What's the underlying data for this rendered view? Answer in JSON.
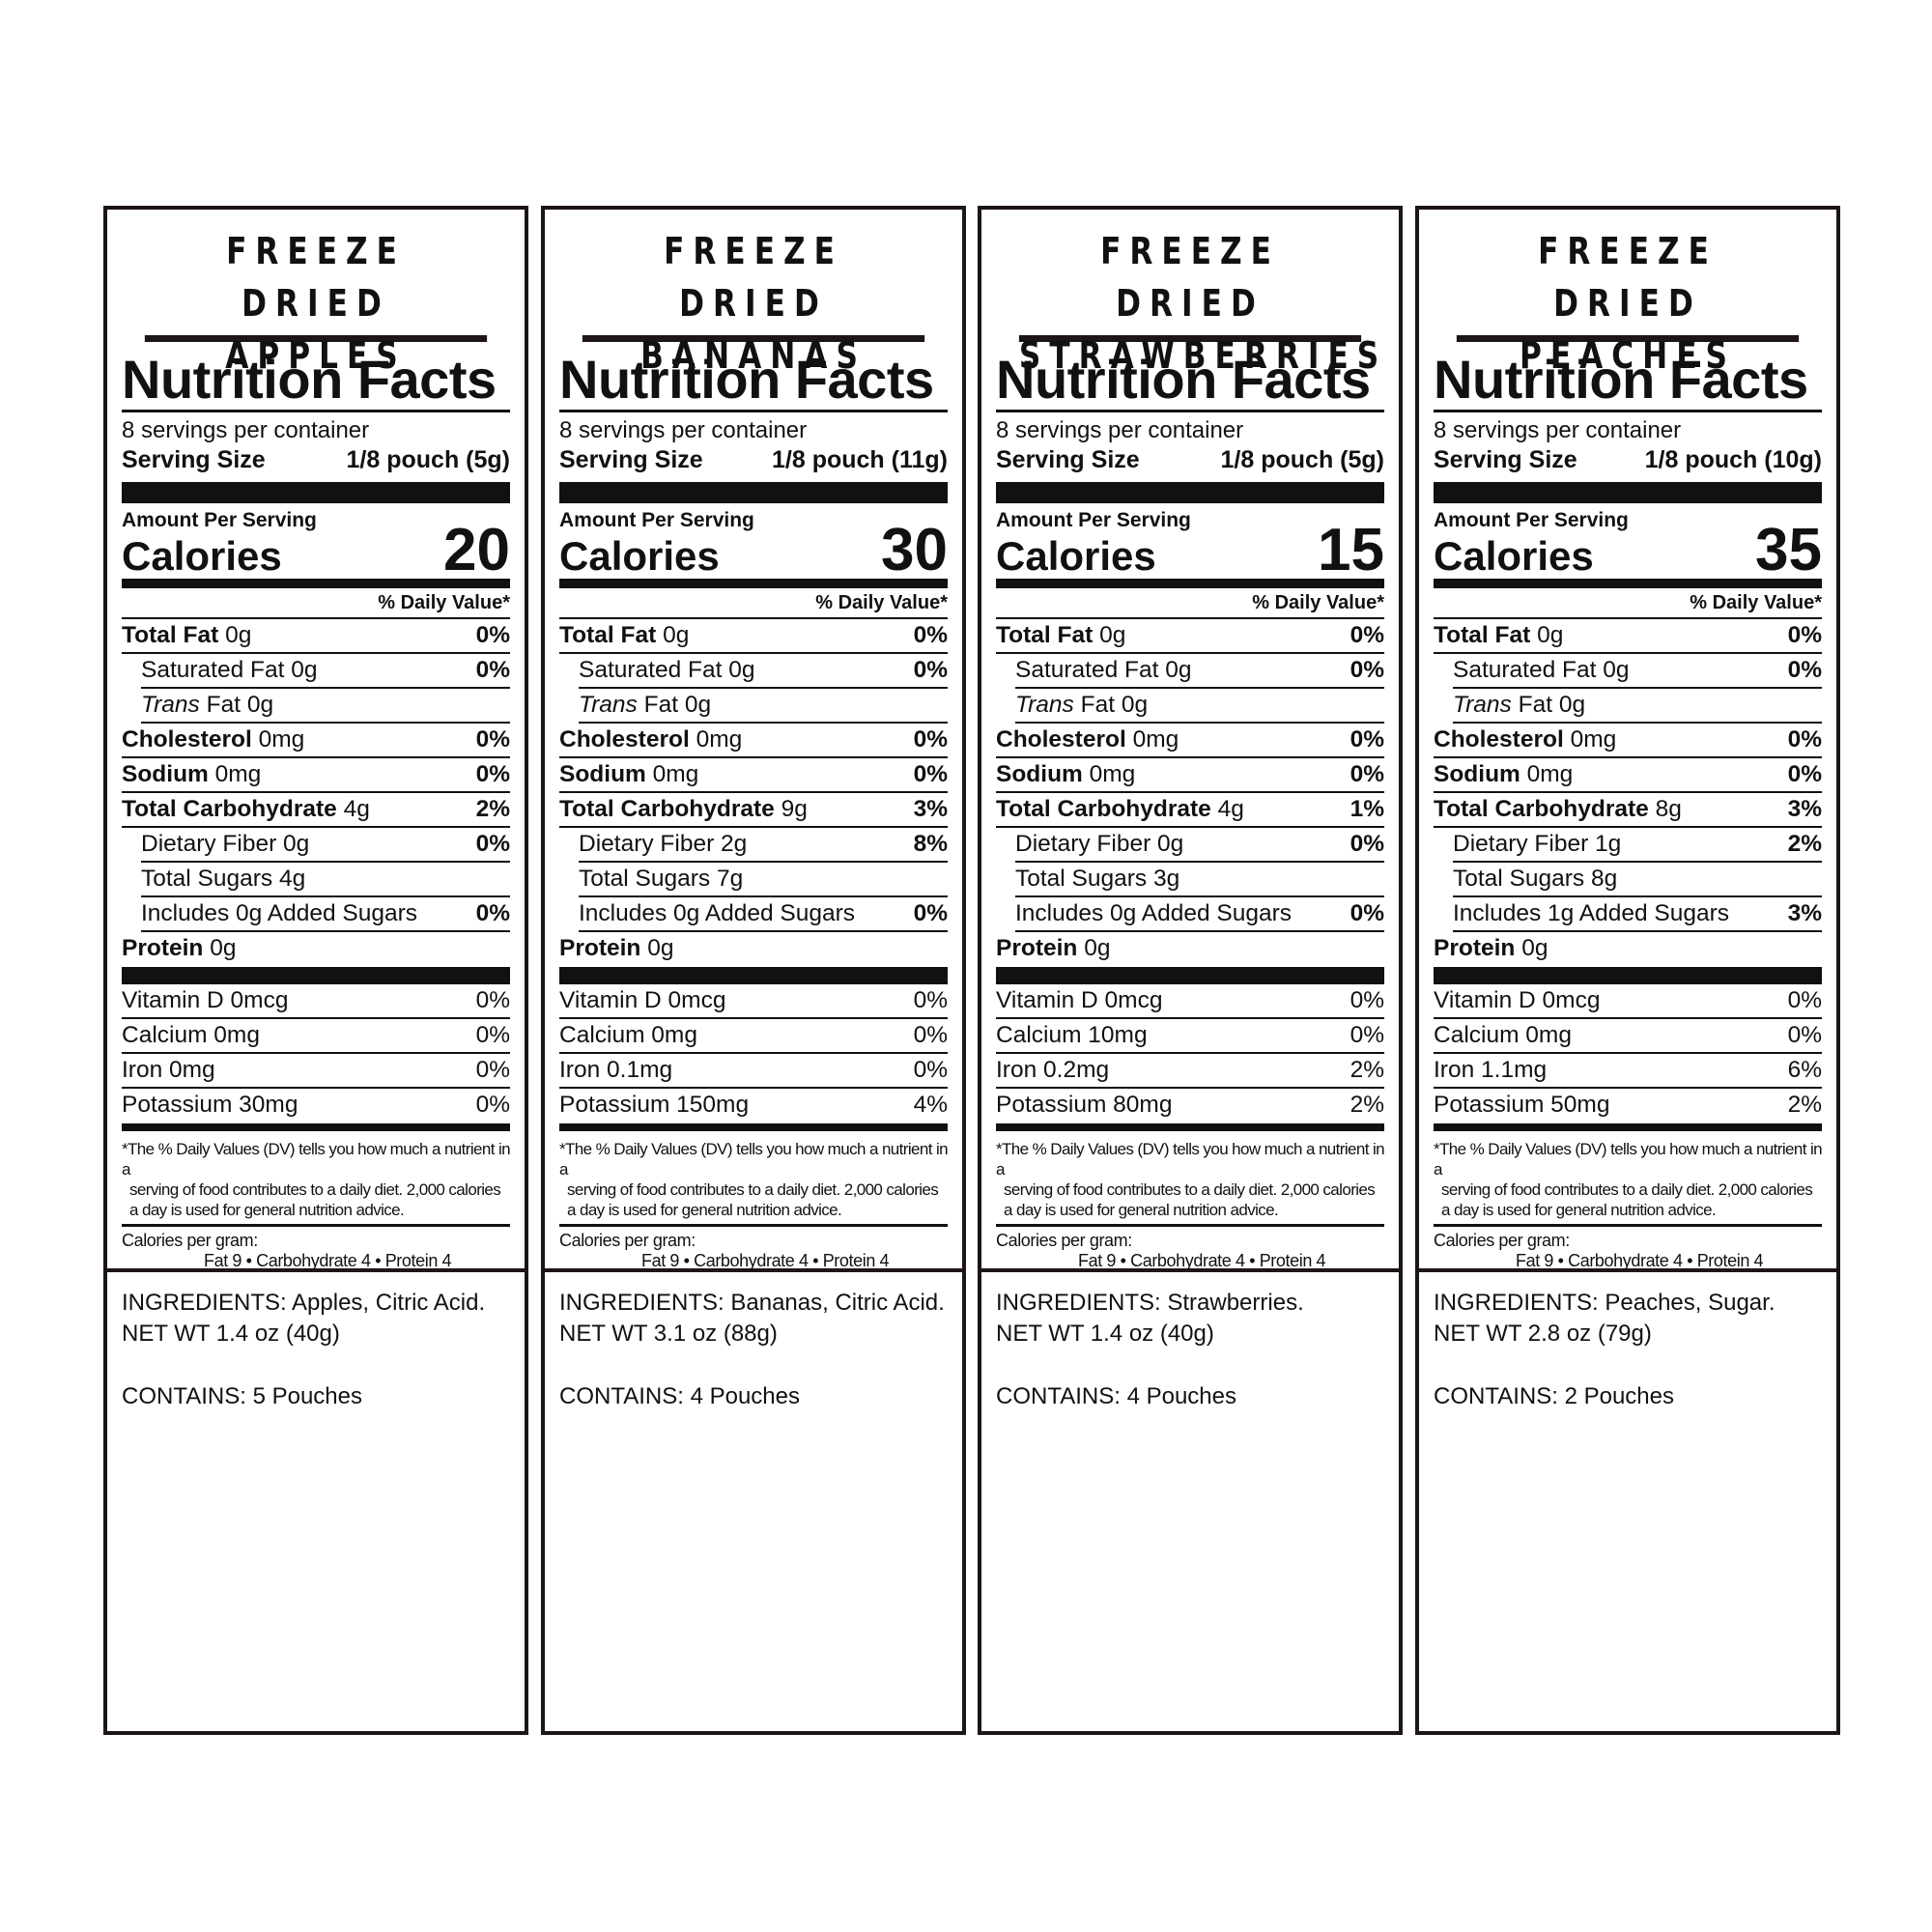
{
  "common": {
    "title_prefix": "FREEZE DRIED",
    "nf_heading": "Nutrition Facts",
    "servings": "8 servings per container",
    "serving_size_label": "Serving Size",
    "amount_per_serving": "Amount Per Serving",
    "calories_label": "Calories",
    "dv_header": "% Daily Value*",
    "footnote": [
      "*The % Daily Values (DV) tells you how much a nutrient in a",
      "serving of food contributes to a daily diet. 2,000 calories",
      "a day is used for general nutrition advice."
    ],
    "cal_per_gram": "Calories per gram:",
    "cal_per_gram_values": "Fat 9  •  Carbohydrate 4  •  Protein 4",
    "ingredients_label": "INGREDIENTS:",
    "contains_label": "CONTAINS:"
  },
  "products": [
    {
      "name": "APPLES",
      "serving_size": "1/8 pouch (5g)",
      "calories": "20",
      "rows": [
        {
          "bold": "Total Fat",
          "text": " 0g",
          "dv": "0%"
        },
        {
          "text": "Saturated Fat 0g",
          "dv": "0%",
          "indent": true
        },
        {
          "italic": "Trans",
          "text": " Fat 0g",
          "dv": "",
          "indent": true
        },
        {
          "bold": "Cholesterol",
          "text": " 0mg",
          "dv": "0%"
        },
        {
          "bold": "Sodium",
          "text": " 0mg",
          "dv": "0%"
        },
        {
          "bold": "Total Carbohydrate",
          "text": " 4g",
          "dv": "2%"
        },
        {
          "text": "Dietary Fiber 0g",
          "dv": "0%",
          "indent": true
        },
        {
          "text": "Total Sugars 4g",
          "dv": "",
          "indent": true
        },
        {
          "text": "Includes 0g Added Sugars",
          "dv": "0%",
          "indent": true
        },
        {
          "bold": "Protein",
          "text": " 0g",
          "dv": ""
        }
      ],
      "vitamins": [
        {
          "text": "Vitamin D 0mcg",
          "dv": "0%"
        },
        {
          "text": "Calcium 0mg",
          "dv": "0%"
        },
        {
          "text": "Iron 0mg",
          "dv": "0%"
        },
        {
          "text": "Potassium 30mg",
          "dv": "0%"
        }
      ],
      "ingredients": "Apples, Citric Acid.",
      "net_wt": "NET WT 1.4 oz (40g)",
      "contains": "5 Pouches"
    },
    {
      "name": "BANANAS",
      "serving_size": "1/8 pouch (11g)",
      "calories": "30",
      "rows": [
        {
          "bold": "Total Fat",
          "text": " 0g",
          "dv": "0%"
        },
        {
          "text": "Saturated Fat 0g",
          "dv": "0%",
          "indent": true
        },
        {
          "italic": "Trans",
          "text": " Fat 0g",
          "dv": "",
          "indent": true
        },
        {
          "bold": "Cholesterol",
          "text": " 0mg",
          "dv": "0%"
        },
        {
          "bold": "Sodium",
          "text": " 0mg",
          "dv": "0%"
        },
        {
          "bold": "Total Carbohydrate",
          "text": " 9g",
          "dv": "3%"
        },
        {
          "text": "Dietary Fiber 2g",
          "dv": "8%",
          "indent": true
        },
        {
          "text": "Total Sugars 7g",
          "dv": "",
          "indent": true
        },
        {
          "text": "Includes 0g Added Sugars",
          "dv": "0%",
          "indent": true
        },
        {
          "bold": "Protein",
          "text": " 0g",
          "dv": ""
        }
      ],
      "vitamins": [
        {
          "text": "Vitamin D 0mcg",
          "dv": "0%"
        },
        {
          "text": "Calcium 0mg",
          "dv": "0%"
        },
        {
          "text": "Iron 0.1mg",
          "dv": "0%"
        },
        {
          "text": "Potassium 150mg",
          "dv": "4%"
        }
      ],
      "ingredients": "Bananas, Citric Acid.",
      "net_wt": "NET WT 3.1 oz (88g)",
      "contains": "4 Pouches"
    },
    {
      "name": "STRAWBERRIES",
      "serving_size": "1/8 pouch (5g)",
      "calories": "15",
      "rows": [
        {
          "bold": "Total Fat",
          "text": " 0g",
          "dv": "0%"
        },
        {
          "text": "Saturated Fat 0g",
          "dv": "0%",
          "indent": true
        },
        {
          "italic": "Trans",
          "text": " Fat 0g",
          "dv": "",
          "indent": true
        },
        {
          "bold": "Cholesterol",
          "text": " 0mg",
          "dv": "0%"
        },
        {
          "bold": "Sodium",
          "text": " 0mg",
          "dv": "0%"
        },
        {
          "bold": "Total Carbohydrate",
          "text": " 4g",
          "dv": "1%"
        },
        {
          "text": "Dietary Fiber 0g",
          "dv": "0%",
          "indent": true
        },
        {
          "text": "Total Sugars 3g",
          "dv": "",
          "indent": true
        },
        {
          "text": "Includes 0g Added Sugars",
          "dv": "0%",
          "indent": true
        },
        {
          "bold": "Protein",
          "text": " 0g",
          "dv": ""
        }
      ],
      "vitamins": [
        {
          "text": "Vitamin D 0mcg",
          "dv": "0%"
        },
        {
          "text": "Calcium 10mg",
          "dv": "0%"
        },
        {
          "text": "Iron 0.2mg",
          "dv": "2%"
        },
        {
          "text": "Potassium 80mg",
          "dv": "2%"
        }
      ],
      "ingredients": "Strawberries.",
      "net_wt": "NET WT 1.4 oz (40g)",
      "contains": "4 Pouches"
    },
    {
      "name": "PEACHES",
      "serving_size": "1/8 pouch (10g)",
      "calories": "35",
      "rows": [
        {
          "bold": "Total Fat",
          "text": " 0g",
          "dv": "0%"
        },
        {
          "text": "Saturated Fat 0g",
          "dv": "0%",
          "indent": true
        },
        {
          "italic": "Trans",
          "text": " Fat 0g",
          "dv": "",
          "indent": true
        },
        {
          "bold": "Cholesterol",
          "text": " 0mg",
          "dv": "0%"
        },
        {
          "bold": "Sodium",
          "text": " 0mg",
          "dv": "0%"
        },
        {
          "bold": "Total Carbohydrate",
          "text": " 8g",
          "dv": "3%"
        },
        {
          "text": "Dietary Fiber 1g",
          "dv": "2%",
          "indent": true
        },
        {
          "text": "Total Sugars 8g",
          "dv": "",
          "indent": true
        },
        {
          "text": "Includes 1g Added Sugars",
          "dv": "3%",
          "indent": true
        },
        {
          "bold": "Protein",
          "text": " 0g",
          "dv": ""
        }
      ],
      "vitamins": [
        {
          "text": "Vitamin D 0mcg",
          "dv": "0%"
        },
        {
          "text": "Calcium 0mg",
          "dv": "0%"
        },
        {
          "text": "Iron 1.1mg",
          "dv": "6%"
        },
        {
          "text": "Potassium 50mg",
          "dv": "2%"
        }
      ],
      "ingredients": "Peaches, Sugar.",
      "net_wt": "NET WT 2.8 oz (79g)",
      "contains": "2 Pouches"
    }
  ]
}
